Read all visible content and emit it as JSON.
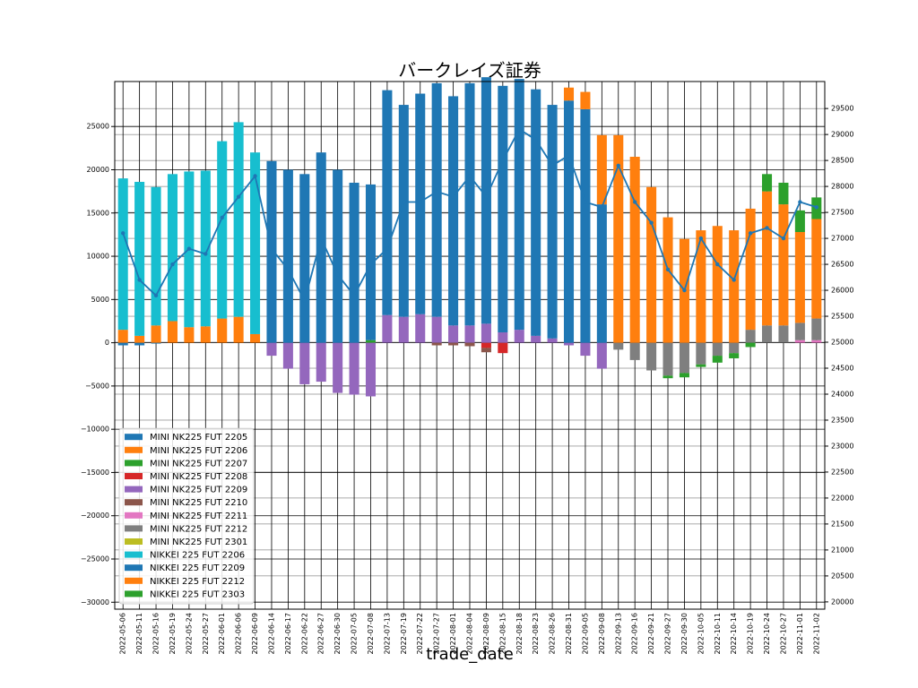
{
  "chart_data": {
    "type": "stacked-bar-line",
    "title": "バークレイズ証券",
    "x_label": "trade_date",
    "categories": [
      "2022-05-06",
      "2022-05-11",
      "2022-05-16",
      "2022-05-19",
      "2022-05-24",
      "2022-05-27",
      "2022-06-01",
      "2022-06-06",
      "2022-06-09",
      "2022-06-14",
      "2022-06-17",
      "2022-06-22",
      "2022-06-27",
      "2022-06-30",
      "2022-07-05",
      "2022-07-08",
      "2022-07-13",
      "2022-07-19",
      "2022-07-22",
      "2022-07-27",
      "2022-08-01",
      "2022-08-04",
      "2022-08-09",
      "2022-08-15",
      "2022-08-18",
      "2022-08-23",
      "2022-08-26",
      "2022-08-31",
      "2022-09-05",
      "2022-09-08",
      "2022-09-13",
      "2022-09-16",
      "2022-09-21",
      "2022-09-27",
      "2022-09-30",
      "2022-10-05",
      "2022-10-11",
      "2022-10-14",
      "2022-10-19",
      "2022-10-24",
      "2022-10-27",
      "2022-11-01",
      "2022-11-02"
    ],
    "series": [
      {
        "name": "MINI NK225 FUT 2205",
        "color": "#1f77b4",
        "values": [
          -300,
          -300,
          -100,
          0,
          0,
          0,
          0,
          0,
          0,
          0,
          0,
          0,
          0,
          0,
          0,
          0,
          0,
          0,
          0,
          0,
          0,
          0,
          0,
          0,
          0,
          0,
          0,
          0,
          0,
          0,
          0,
          0,
          0,
          0,
          0,
          0,
          0,
          0,
          0,
          0,
          0,
          0,
          0
        ]
      },
      {
        "name": "MINI NK225 FUT 2206",
        "color": "#ff7f0e",
        "values": [
          1500,
          800,
          2000,
          2500,
          1800,
          1900,
          2800,
          3000,
          1000,
          0,
          0,
          0,
          0,
          0,
          0,
          0,
          0,
          0,
          0,
          0,
          0,
          0,
          0,
          0,
          0,
          0,
          0,
          0,
          0,
          0,
          0,
          0,
          0,
          0,
          0,
          0,
          0,
          0,
          0,
          0,
          0,
          0,
          0
        ]
      },
      {
        "name": "MINI NK225 FUT 2207",
        "color": "#2ca02c",
        "values": [
          0,
          0,
          0,
          0,
          0,
          0,
          0,
          0,
          0,
          0,
          0,
          0,
          0,
          0,
          0,
          300,
          0,
          0,
          0,
          0,
          0,
          0,
          0,
          0,
          0,
          0,
          0,
          0,
          0,
          0,
          0,
          0,
          0,
          0,
          0,
          0,
          0,
          0,
          0,
          0,
          0,
          0,
          0
        ]
      },
      {
        "name": "MINI NK225 FUT 2208",
        "color": "#d62728",
        "values": [
          0,
          0,
          0,
          0,
          0,
          0,
          0,
          0,
          0,
          0,
          0,
          0,
          0,
          0,
          0,
          0,
          0,
          0,
          0,
          0,
          0,
          0,
          -600,
          -1200,
          0,
          0,
          0,
          0,
          0,
          0,
          0,
          0,
          0,
          0,
          0,
          0,
          0,
          0,
          0,
          0,
          0,
          0,
          0
        ]
      },
      {
        "name": "MINI NK225 FUT 2209",
        "color": "#9467bd",
        "values": [
          0,
          0,
          0,
          0,
          0,
          0,
          0,
          0,
          0,
          -1500,
          -3000,
          -4800,
          -4500,
          -5800,
          -6000,
          -6200,
          3200,
          3000,
          3300,
          3000,
          2000,
          2000,
          2200,
          1200,
          1500,
          800,
          500,
          -300,
          -1500,
          -3000,
          0,
          0,
          0,
          0,
          0,
          0,
          0,
          0,
          0,
          0,
          0,
          0,
          0
        ]
      },
      {
        "name": "MINI NK225 FUT 2210",
        "color": "#8c564b",
        "values": [
          0,
          0,
          0,
          0,
          0,
          0,
          0,
          0,
          0,
          0,
          0,
          0,
          0,
          0,
          0,
          0,
          0,
          0,
          0,
          -300,
          -300,
          -400,
          -500,
          0,
          0,
          0,
          0,
          0,
          0,
          0,
          0,
          0,
          0,
          0,
          0,
          0,
          0,
          0,
          0,
          0,
          0,
          0,
          0
        ]
      },
      {
        "name": "MINI NK225 FUT 2211",
        "color": "#e377c2",
        "values": [
          0,
          0,
          0,
          0,
          0,
          0,
          0,
          0,
          0,
          0,
          0,
          0,
          0,
          0,
          0,
          0,
          0,
          0,
          0,
          0,
          0,
          0,
          0,
          0,
          0,
          0,
          0,
          0,
          0,
          0,
          0,
          0,
          0,
          0,
          0,
          0,
          0,
          0,
          0,
          0,
          0,
          300,
          300
        ]
      },
      {
        "name": "MINI NK225 FUT 2212",
        "color": "#7f7f7f",
        "values": [
          0,
          0,
          0,
          0,
          0,
          0,
          0,
          0,
          0,
          0,
          0,
          0,
          0,
          0,
          0,
          0,
          0,
          0,
          0,
          0,
          0,
          0,
          0,
          0,
          0,
          0,
          0,
          0,
          0,
          0,
          -800,
          -2000,
          -3200,
          -3800,
          -3500,
          -2500,
          -1500,
          -1200,
          1500,
          2000,
          2000,
          2000,
          2500
        ]
      },
      {
        "name": "MINI NK225 FUT 2301",
        "color": "#bcbd22",
        "values": [
          0,
          0,
          0,
          0,
          0,
          0,
          0,
          0,
          0,
          0,
          0,
          0,
          0,
          0,
          0,
          0,
          0,
          0,
          0,
          0,
          0,
          0,
          0,
          0,
          0,
          0,
          0,
          0,
          0,
          0,
          0,
          0,
          0,
          0,
          0,
          0,
          0,
          0,
          0,
          0,
          0,
          0,
          0
        ]
      },
      {
        "name": "NIKKEI 225 FUT 2206",
        "color": "#17becf",
        "values": [
          17500,
          17800,
          16000,
          17000,
          18000,
          18000,
          20500,
          22500,
          21000,
          0,
          0,
          0,
          0,
          0,
          0,
          0,
          0,
          0,
          0,
          0,
          0,
          0,
          0,
          0,
          0,
          0,
          0,
          0,
          0,
          0,
          0,
          0,
          0,
          0,
          0,
          0,
          0,
          0,
          0,
          0,
          0,
          0,
          0
        ]
      },
      {
        "name": "NIKKEI 225 FUT 2209",
        "color": "#1f77b4",
        "values": [
          0,
          0,
          0,
          0,
          0,
          0,
          0,
          0,
          0,
          21000,
          20000,
          19500,
          22000,
          20000,
          18500,
          18000,
          26000,
          24500,
          25500,
          27000,
          26500,
          28000,
          28500,
          28500,
          29000,
          28500,
          27000,
          28000,
          27000,
          16000,
          0,
          0,
          0,
          0,
          0,
          0,
          0,
          0,
          0,
          0,
          0,
          0,
          0
        ]
      },
      {
        "name": "NIKKEI 225 FUT 2212",
        "color": "#ff7f0e",
        "values": [
          0,
          0,
          0,
          0,
          0,
          0,
          0,
          0,
          0,
          0,
          0,
          0,
          0,
          0,
          0,
          0,
          0,
          0,
          0,
          0,
          0,
          0,
          0,
          0,
          0,
          0,
          0,
          1500,
          2000,
          8000,
          24000,
          21500,
          18000,
          14500,
          12000,
          13000,
          13500,
          13000,
          14000,
          15500,
          14000,
          10500,
          11500
        ]
      },
      {
        "name": "NIKKEI 225 FUT 2303",
        "color": "#2ca02c",
        "values": [
          0,
          0,
          0,
          0,
          0,
          0,
          0,
          0,
          0,
          0,
          0,
          0,
          0,
          0,
          0,
          0,
          0,
          0,
          0,
          0,
          0,
          0,
          0,
          0,
          0,
          0,
          0,
          0,
          0,
          0,
          0,
          0,
          0,
          -300,
          -500,
          -300,
          -800,
          -600,
          -500,
          2000,
          2500,
          2500,
          2500
        ]
      }
    ],
    "line": {
      "color": "#1f77b4",
      "axis": "y2",
      "values": [
        27100,
        26200,
        25900,
        26500,
        26800,
        26700,
        27400,
        27800,
        28200,
        26800,
        26400,
        25800,
        27000,
        26300,
        25900,
        26500,
        26800,
        27700,
        27700,
        27900,
        27800,
        28200,
        27800,
        28500,
        29100,
        28900,
        28400,
        28600,
        27700,
        27600,
        28400,
        27700,
        27300,
        26400,
        26000,
        27000,
        26500,
        26200,
        27100,
        27200,
        27000,
        27700,
        27600
      ]
    },
    "ylim": [
      -30800,
      30200
    ],
    "yticks": [
      {
        "value": -30000,
        "label": "−30000"
      },
      {
        "value": -25000,
        "label": "−25000"
      },
      {
        "value": -20000,
        "label": "−20000"
      },
      {
        "value": -15000,
        "label": "−15000"
      },
      {
        "value": -10000,
        "label": "−10000"
      },
      {
        "value": -5000,
        "label": "−5000"
      },
      0,
      5000,
      10000,
      15000,
      20000,
      25000
    ],
    "y2lim": [
      19860,
      30020
    ],
    "y2ticks": [
      20000,
      20500,
      21000,
      21500,
      22000,
      22500,
      23000,
      23500,
      24000,
      24500,
      25000,
      25500,
      26000,
      26500,
      27000,
      27500,
      28000,
      28500,
      29000,
      29500
    ],
    "grid": true,
    "legend": "lower left"
  }
}
